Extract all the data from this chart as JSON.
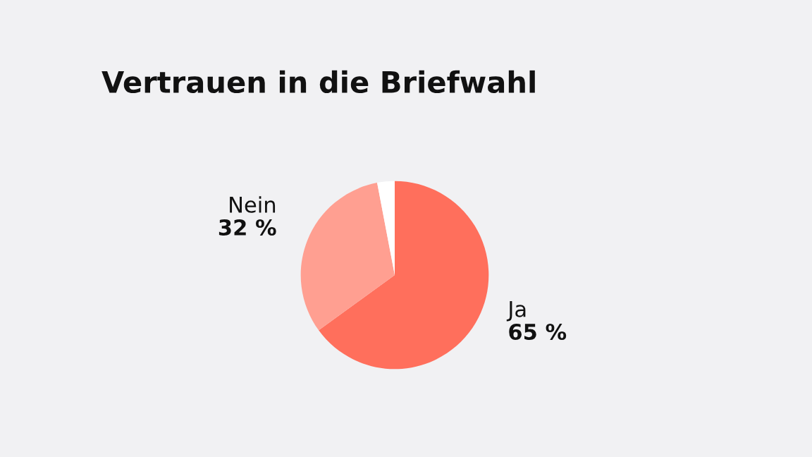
{
  "chart_data": {
    "type": "pie",
    "title": "Vertrauen in die Briefwahl",
    "categories": [
      "Ja",
      "Nein",
      null
    ],
    "values": [
      65,
      32,
      3
    ],
    "colors": [
      "#ff6f5c",
      "#ff9f91",
      "#ffffff"
    ],
    "value_labels": [
      "65 %",
      "32 %",
      null
    ],
    "legend": false
  }
}
